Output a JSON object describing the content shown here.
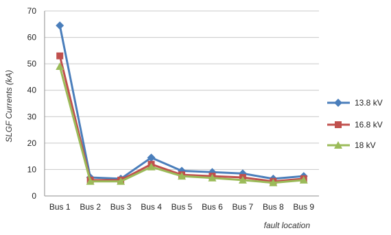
{
  "chart_data": {
    "type": "line",
    "title": "",
    "xlabel": "fault location",
    "ylabel": "SLGF Currents (kA)",
    "ylim": [
      0,
      70
    ],
    "yticks": [
      0,
      10,
      20,
      30,
      40,
      50,
      60,
      70
    ],
    "grid": true,
    "legend_position": "right",
    "categories": [
      "Bus 1",
      "Bus 2",
      "Bus 3",
      "Bus 4",
      "Bus 5",
      "Bus 6",
      "Bus 7",
      "Bus 8",
      "Bus 9"
    ],
    "series": [
      {
        "name": "13.8 kV",
        "color": "#4a7ebb",
        "marker": "diamond",
        "values": [
          64.5,
          7.0,
          6.5,
          14.5,
          9.5,
          9.0,
          8.5,
          6.5,
          7.5
        ]
      },
      {
        "name": "16.8 kV",
        "color": "#c0504d",
        "marker": "square",
        "values": [
          53.0,
          6.0,
          6.0,
          12.0,
          8.0,
          7.5,
          7.0,
          5.5,
          6.5
        ]
      },
      {
        "name": "18 kV",
        "color": "#9bbb59",
        "marker": "triangle",
        "values": [
          49.0,
          5.5,
          5.5,
          11.0,
          7.5,
          6.8,
          6.0,
          5.0,
          6.0
        ]
      }
    ]
  }
}
